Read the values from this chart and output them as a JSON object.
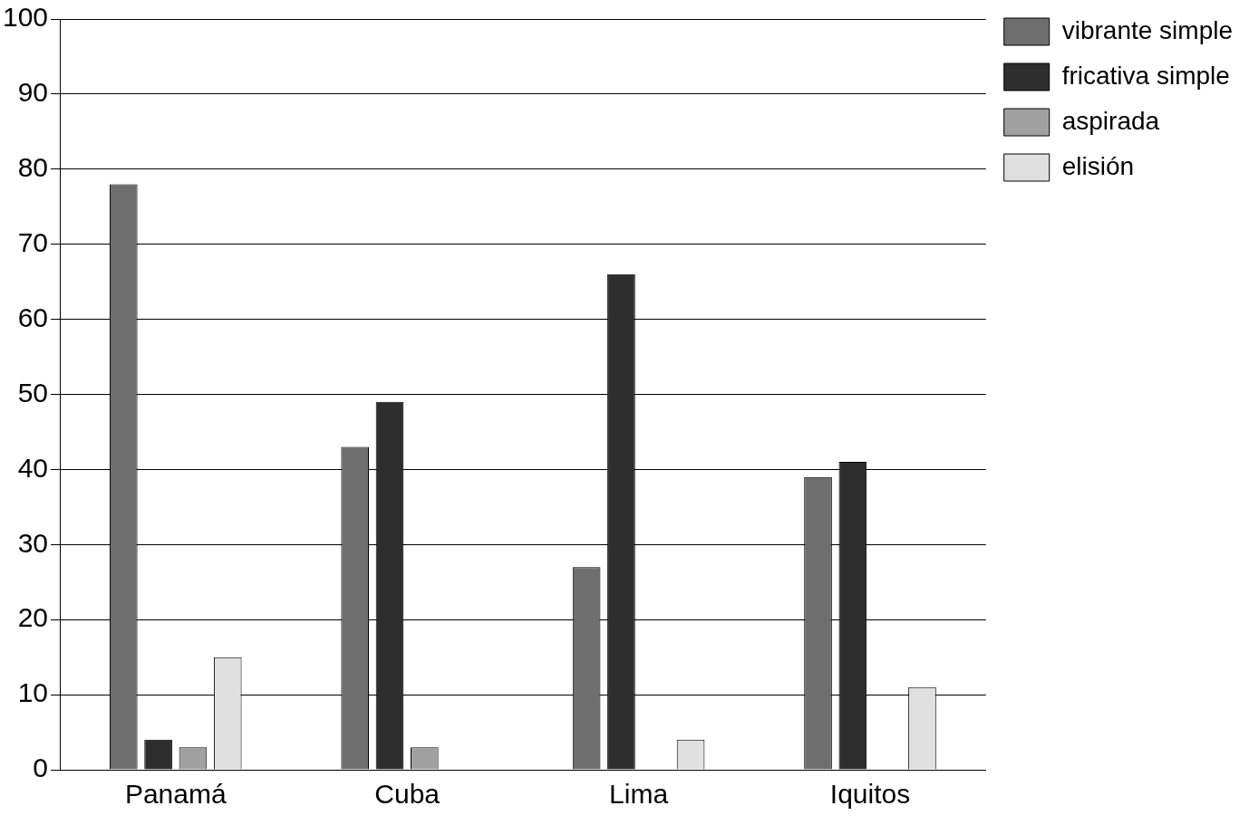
{
  "chart_data": {
    "type": "bar",
    "categories": [
      "Panamá",
      "Cuba",
      "Lima",
      "Iquitos"
    ],
    "series": [
      {
        "name": "vibrante simple",
        "color": "#6e6e6e",
        "values": [
          78,
          43,
          27,
          39
        ]
      },
      {
        "name": "fricativa simple",
        "color": "#2e2e2e",
        "values": [
          4,
          49,
          66,
          41
        ]
      },
      {
        "name": "aspirada",
        "color": "#a0a0a0",
        "values": [
          3,
          3,
          0,
          0
        ]
      },
      {
        "name": "elisión",
        "color": "#e0e0e0",
        "values": [
          15,
          0,
          4,
          11
        ]
      }
    ],
    "ylim": [
      0,
      100
    ],
    "yticks": [
      0,
      10,
      20,
      30,
      40,
      50,
      60,
      70,
      80,
      90,
      100
    ],
    "grid": "y",
    "legend": "right"
  }
}
